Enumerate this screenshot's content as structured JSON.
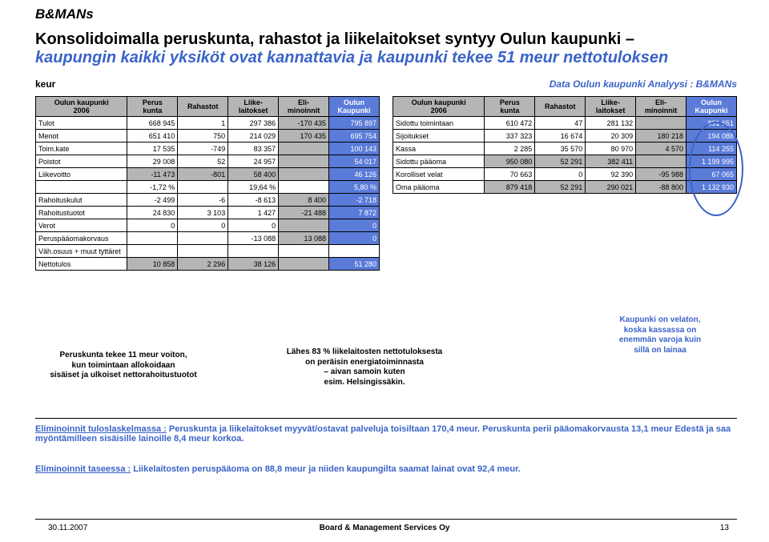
{
  "logo": "B&MANs",
  "title_line1": "Konsolidoimalla peruskunta, rahastot ja liikelaitokset syntyy Oulun kaupunki –",
  "title_line2": "kaupungin kaikki yksiköt ovat kannattavia ja kaupunki tekee 51 meur nettotuloksen",
  "keur": "keur",
  "datasrc": "Data Oulun kaupunki  Analyysi : B&MANs",
  "left_header": {
    "c0a": "Oulun kaupunki",
    "c0b": "2006",
    "c1": "Perus\nkunta",
    "c2": "Rahastot",
    "c3": "Liike-\nlaitokset",
    "c4a": "Eli-",
    "c4b": "minoinnit",
    "c5": "Oulun\nKaupunki"
  },
  "left": {
    "rows": [
      {
        "l": "Tulot",
        "v": [
          "668 945",
          "1",
          "297 386",
          "-170 435",
          "795 897"
        ],
        "cls": [
          "",
          "",
          "",
          "cell-grey",
          "cell-blue"
        ]
      },
      {
        "l": "Menot",
        "v": [
          "651 410",
          "750",
          "214 029",
          "170 435",
          "695 754"
        ],
        "cls": [
          "",
          "",
          "",
          "cell-grey",
          "cell-blue"
        ]
      },
      {
        "l": "Toim.kate",
        "v": [
          "17 535",
          "-749",
          "83 357",
          "",
          "100 143"
        ],
        "cls": [
          "",
          "",
          "",
          "cell-grey",
          "cell-blue"
        ]
      },
      {
        "l": "Poistot",
        "v": [
          "29 008",
          "52",
          "24 957",
          "",
          "54 017"
        ],
        "cls": [
          "",
          "",
          "",
          "cell-grey",
          "cell-blue"
        ]
      },
      {
        "l": "Liikevoitto",
        "v": [
          "-11 473",
          "-801",
          "58 400",
          "",
          "46 126"
        ],
        "cls": [
          "cell-grey",
          "cell-grey",
          "cell-grey",
          "cell-grey",
          "cell-blue"
        ]
      },
      {
        "l": "",
        "v": [
          "-1,72 %",
          "",
          "19,64 %",
          "",
          "5,80 %"
        ],
        "cls": [
          "",
          "",
          "",
          "",
          "cell-blue"
        ]
      },
      {
        "l": "Rahoituskulut",
        "v": [
          "-2 499",
          "-6",
          "-8 613",
          "8 400",
          "-2 718"
        ],
        "cls": [
          "",
          "",
          "",
          "cell-grey",
          "cell-blue"
        ]
      },
      {
        "l": "Rahoitustuotot",
        "v": [
          "24 830",
          "3 103",
          "1 427",
          "-21 488",
          "7 872"
        ],
        "cls": [
          "",
          "",
          "",
          "cell-grey",
          "cell-blue"
        ]
      },
      {
        "l": "Verot",
        "v": [
          "0",
          "0",
          "0",
          "",
          "0"
        ],
        "cls": [
          "",
          "",
          "",
          "cell-grey",
          "cell-blue"
        ]
      },
      {
        "l": "Peruspääomakorvaus",
        "v": [
          "",
          "",
          "-13 088",
          "13 088",
          "0"
        ],
        "cls": [
          "",
          "",
          "",
          "cell-grey",
          "cell-blue"
        ]
      },
      {
        "l": "Väh.osuus + muut tyttäret",
        "v": [
          "",
          "",
          "",
          "",
          ""
        ],
        "cls": [
          "",
          "",
          "",
          "",
          ""
        ]
      },
      {
        "l": "Nettotulos",
        "v": [
          "10 858",
          "2 296",
          "38 126",
          "",
          "51 280"
        ],
        "cls": [
          "cell-grey",
          "cell-grey",
          "cell-grey",
          "cell-grey",
          "cell-blue"
        ]
      }
    ]
  },
  "right_header": {
    "c0a": "Oulun kaupunki",
    "c0b": "2006",
    "c1": "Perus\nkunta",
    "c2": "Rahastot",
    "c3": "Liike-\nlaitokset",
    "c4a": "Eli-",
    "c4b": "minoinnit",
    "c5": "Oulun\nKaupunki"
  },
  "right": {
    "rows": [
      {
        "l": "Sidottu toimintaan",
        "v": [
          "610 472",
          "47",
          "281 132",
          "",
          "891 651"
        ],
        "cls": [
          "",
          "",
          "",
          "cell-grey",
          "cell-blue"
        ]
      },
      {
        "l": "Sijoitukset",
        "v": [
          "337 323",
          "16 674",
          "20 309",
          "180 218",
          "194 088"
        ],
        "cls": [
          "",
          "",
          "",
          "cell-grey",
          "cell-blue"
        ]
      },
      {
        "l": "Kassa",
        "v": [
          "2 285",
          "35 570",
          "80 970",
          "4 570",
          "114 255"
        ],
        "cls": [
          "",
          "",
          "",
          "cell-grey",
          "cell-blue"
        ]
      },
      {
        "l": "Sidottu pääoma",
        "v": [
          "950 080",
          "52 291",
          "382 411",
          "",
          "1 199 995"
        ],
        "cls": [
          "cell-grey",
          "cell-grey",
          "cell-grey",
          "cell-grey",
          "cell-blue"
        ]
      },
      {
        "l": "Korolliset velat",
        "v": [
          "70 663",
          "0",
          "92 390",
          "-95 988",
          "67 065"
        ],
        "cls": [
          "",
          "",
          "",
          "cell-grey",
          "cell-blue"
        ]
      },
      {
        "l": "Oma pääoma",
        "v": [
          "879 418",
          "52 291",
          "290 021",
          "-88 800",
          "1 132 930"
        ],
        "cls": [
          "cell-grey",
          "cell-grey",
          "cell-grey",
          "cell-grey",
          "cell-blue"
        ]
      }
    ]
  },
  "noteL": "Peruskunta tekee 11 meur voiton,\nkun toimintaan allokoidaan\nsisäiset ja ulkoiset nettorahoitustuotot",
  "noteM": "Lähes 83 % liikelaitosten nettotuloksesta\non peräisin energiatoiminnasta\n– aivan samoin kuten\nesim. Helsingissäkin.",
  "noteR": "Kaupunki on velaton,\nkoska kassassa on\nenemmän varoja kuin\nsillä on lainaa",
  "elim1_label": "Eliminoinnit tuloslaskelmassa :",
  "elim1_text": " Peruskunta ja liikelaitokset myyvät/ostavat palveluja toisiltaan 170,4 meur. Peruskunta perii pääomakorvausta 13,1 meur Edestä ja saa myöntämilleen sisäisille lainoille 8,4  meur korkoa.",
  "elim2_label": "Eliminoinnit taseessa :",
  "elim2_text": " Liikelaitosten peruspääoma on 88,8 meur ja niiden kaupungilta saamat lainat ovat 92,4 meur.",
  "footer": {
    "date": "30.11.2007",
    "center": "Board & Management Services Oy",
    "page": "13"
  },
  "colors": {
    "header_grey": "#b5b5b5",
    "header_blue": "#5a7bd8",
    "accent_blue": "#3a63c8"
  }
}
